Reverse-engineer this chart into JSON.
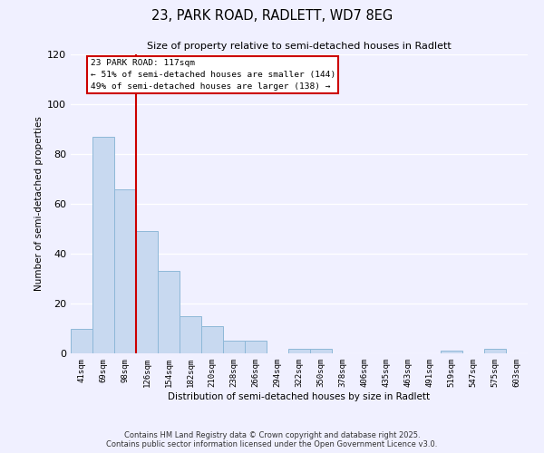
{
  "title_line1": "23, PARK ROAD, RADLETT, WD7 8EG",
  "title_line2": "Size of property relative to semi-detached houses in Radlett",
  "xlabel": "Distribution of semi-detached houses by size in Radlett",
  "ylabel": "Number of semi-detached properties",
  "bar_labels": [
    "41sqm",
    "69sqm",
    "98sqm",
    "126sqm",
    "154sqm",
    "182sqm",
    "210sqm",
    "238sqm",
    "266sqm",
    "294sqm",
    "322sqm",
    "350sqm",
    "378sqm",
    "406sqm",
    "435sqm",
    "463sqm",
    "491sqm",
    "519sqm",
    "547sqm",
    "575sqm",
    "603sqm"
  ],
  "bar_values": [
    10,
    87,
    66,
    49,
    33,
    15,
    11,
    5,
    5,
    0,
    2,
    2,
    0,
    0,
    0,
    0,
    0,
    1,
    0,
    2,
    0
  ],
  "bar_color": "#c8d9f0",
  "bar_edge_color": "#8eb8d8",
  "vline_x": 2.5,
  "vline_color": "#cc0000",
  "ylim": [
    0,
    120
  ],
  "yticks": [
    0,
    20,
    40,
    60,
    80,
    100,
    120
  ],
  "annotation_title": "23 PARK ROAD: 117sqm",
  "annotation_line1": "← 51% of semi-detached houses are smaller (144)",
  "annotation_line2": "49% of semi-detached houses are larger (138) →",
  "annotation_box_color": "#ffffff",
  "annotation_box_edge": "#cc0000",
  "background_color": "#f0f0ff",
  "grid_color": "#ffffff",
  "footnote1": "Contains HM Land Registry data © Crown copyright and database right 2025.",
  "footnote2": "Contains public sector information licensed under the Open Government Licence v3.0."
}
